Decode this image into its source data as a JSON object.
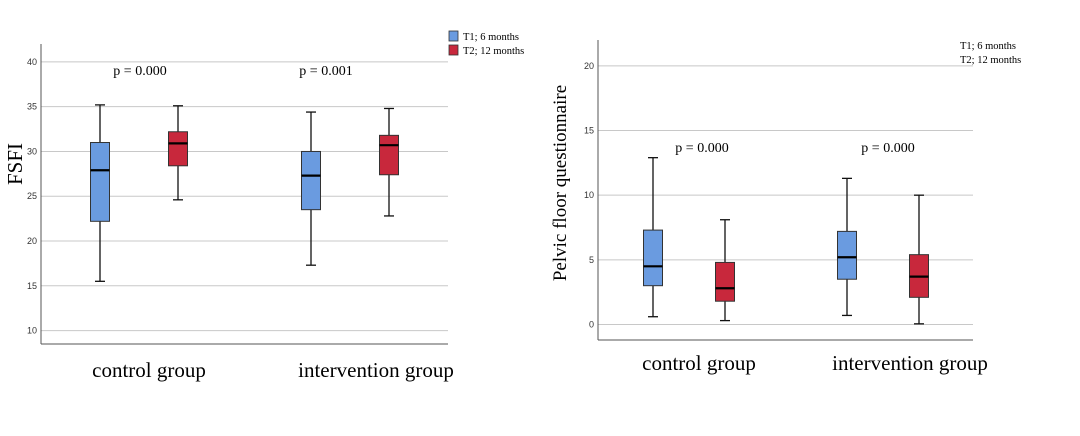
{
  "colors": {
    "T1": "#6a9be0",
    "T2": "#c8283c"
  },
  "chart_data": [
    {
      "type": "boxplot",
      "ylabel": "FSFI",
      "xlabel": "",
      "ylim": [
        8.5,
        42
      ],
      "yticks": [
        "10",
        "15",
        "20",
        "25",
        "30",
        "35",
        "40"
      ],
      "grid": true,
      "legend_position": "top-right",
      "categories": [
        "control group",
        "intervention group"
      ],
      "series": [
        {
          "name": "T1; 6 months",
          "boxes": [
            {
              "min": 15.5,
              "q1": 22.2,
              "median": 27.9,
              "q3": 31.0,
              "max": 35.2
            },
            {
              "min": 17.3,
              "q1": 23.5,
              "median": 27.3,
              "q3": 30.0,
              "max": 34.4
            }
          ]
        },
        {
          "name": "T2; 12 months",
          "boxes": [
            {
              "min": 24.6,
              "q1": 28.4,
              "median": 30.9,
              "q3": 32.2,
              "max": 35.1
            },
            {
              "min": 22.8,
              "q1": 27.4,
              "median": 30.7,
              "q3": 31.8,
              "max": 34.8
            }
          ]
        }
      ],
      "annotations": [
        "p = 0.000",
        "p = 0.001"
      ]
    },
    {
      "type": "boxplot",
      "ylabel": "Pelvic floor questionnaire",
      "xlabel": "",
      "ylim": [
        -1.2,
        22
      ],
      "yticks": [
        "0",
        "5",
        "10",
        "15",
        "20"
      ],
      "grid": true,
      "legend_position": "top-right",
      "categories": [
        "control group",
        "intervention group"
      ],
      "series": [
        {
          "name": "T1; 6 months",
          "boxes": [
            {
              "min": 0.6,
              "q1": 3.0,
              "median": 4.5,
              "q3": 7.3,
              "max": 12.9
            },
            {
              "min": 0.7,
              "q1": 3.5,
              "median": 5.2,
              "q3": 7.2,
              "max": 11.3
            }
          ]
        },
        {
          "name": "T2; 12 months",
          "boxes": [
            {
              "min": 0.3,
              "q1": 1.8,
              "median": 2.8,
              "q3": 4.8,
              "max": 8.1
            },
            {
              "min": 0.05,
              "q1": 2.1,
              "median": 3.7,
              "q3": 5.4,
              "max": 10.0
            }
          ]
        }
      ],
      "annotations": [
        "p = 0.000",
        "p = 0.000"
      ]
    }
  ]
}
